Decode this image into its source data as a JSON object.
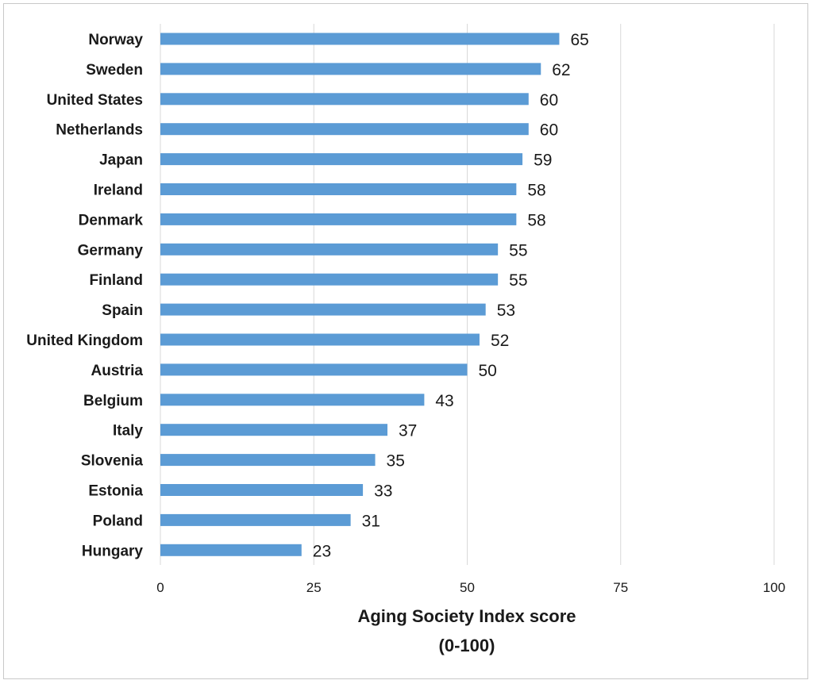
{
  "chart_data": {
    "type": "bar",
    "orientation": "horizontal",
    "categories": [
      "Norway",
      "Sweden",
      "United States",
      "Netherlands",
      "Japan",
      "Ireland",
      "Denmark",
      "Germany",
      "Finland",
      "Spain",
      "United Kingdom",
      "Austria",
      "Belgium",
      "Italy",
      "Slovenia",
      "Estonia",
      "Poland",
      "Hungary"
    ],
    "values": [
      65,
      62,
      60,
      60,
      59,
      58,
      58,
      55,
      55,
      53,
      52,
      50,
      43,
      37,
      35,
      33,
      31,
      23
    ],
    "xlabel": [
      "Aging Society Index score",
      "(0-100)"
    ],
    "ylabel": "",
    "xlim": [
      0,
      100
    ],
    "xticks": [
      0,
      25,
      50,
      75,
      100
    ],
    "grid": "vertical",
    "bar_color": "#5b9bd5"
  }
}
